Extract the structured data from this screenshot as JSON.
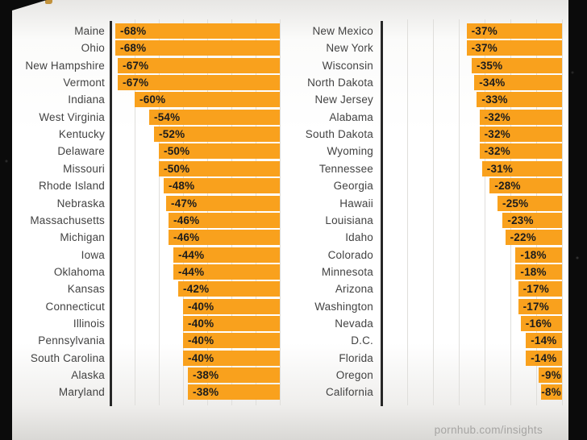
{
  "footer": {
    "source": "pornhub.com/insights"
  },
  "colors": {
    "bar": "#f9a11d",
    "axis": "#272727",
    "gridline": "#dfdedb",
    "state_label": "#424242",
    "value_text": "#1c1c1c",
    "source_text": "#a6a5a3",
    "frame": "#0b0b0b"
  },
  "chart_data": {
    "type": "bar",
    "orientation": "horizontal",
    "unit": "%",
    "title": "",
    "xlabel": "",
    "ylabel": "",
    "axis": {
      "min": -70,
      "max": 0,
      "gridline_step": 10
    },
    "grid": true,
    "legend": false,
    "source": "pornhub.com/insights",
    "panels": [
      {
        "name": "left-panel",
        "rows": [
          {
            "label": "Maine",
            "value": -68
          },
          {
            "label": "Ohio",
            "value": -68
          },
          {
            "label": "New Hampshire",
            "value": -67
          },
          {
            "label": "Vermont",
            "value": -67
          },
          {
            "label": "Indiana",
            "value": -60
          },
          {
            "label": "West Virginia",
            "value": -54
          },
          {
            "label": "Kentucky",
            "value": -52
          },
          {
            "label": "Delaware",
            "value": -50
          },
          {
            "label": "Missouri",
            "value": -50
          },
          {
            "label": "Rhode Island",
            "value": -48
          },
          {
            "label": "Nebraska",
            "value": -47
          },
          {
            "label": "Massachusetts",
            "value": -46
          },
          {
            "label": "Michigan",
            "value": -46
          },
          {
            "label": "Iowa",
            "value": -44
          },
          {
            "label": "Oklahoma",
            "value": -44
          },
          {
            "label": "Kansas",
            "value": -42
          },
          {
            "label": "Connecticut",
            "value": -40
          },
          {
            "label": "Illinois",
            "value": -40
          },
          {
            "label": "Pennsylvania",
            "value": -40
          },
          {
            "label": "South Carolina",
            "value": -40
          },
          {
            "label": "Alaska",
            "value": -38
          },
          {
            "label": "Maryland",
            "value": -38
          }
        ]
      },
      {
        "name": "right-panel",
        "rows": [
          {
            "label": "New Mexico",
            "value": -37
          },
          {
            "label": "New York",
            "value": -37
          },
          {
            "label": "Wisconsin",
            "value": -35
          },
          {
            "label": "North Dakota",
            "value": -34
          },
          {
            "label": "New Jersey",
            "value": -33
          },
          {
            "label": "Alabama",
            "value": -32
          },
          {
            "label": "South Dakota",
            "value": -32
          },
          {
            "label": "Wyoming",
            "value": -32
          },
          {
            "label": "Tennessee",
            "value": -31
          },
          {
            "label": "Georgia",
            "value": -28
          },
          {
            "label": "Hawaii",
            "value": -25
          },
          {
            "label": "Louisiana",
            "value": -23
          },
          {
            "label": "Idaho",
            "value": -22
          },
          {
            "label": "Colorado",
            "value": -18
          },
          {
            "label": "Minnesota",
            "value": -18
          },
          {
            "label": "Arizona",
            "value": -17
          },
          {
            "label": "Washington",
            "value": -17
          },
          {
            "label": "Nevada",
            "value": -16
          },
          {
            "label": "D.C.",
            "value": -14
          },
          {
            "label": "Florida",
            "value": -14
          },
          {
            "label": "Oregon",
            "value": -9
          },
          {
            "label": "California",
            "value": -8
          }
        ]
      }
    ]
  }
}
